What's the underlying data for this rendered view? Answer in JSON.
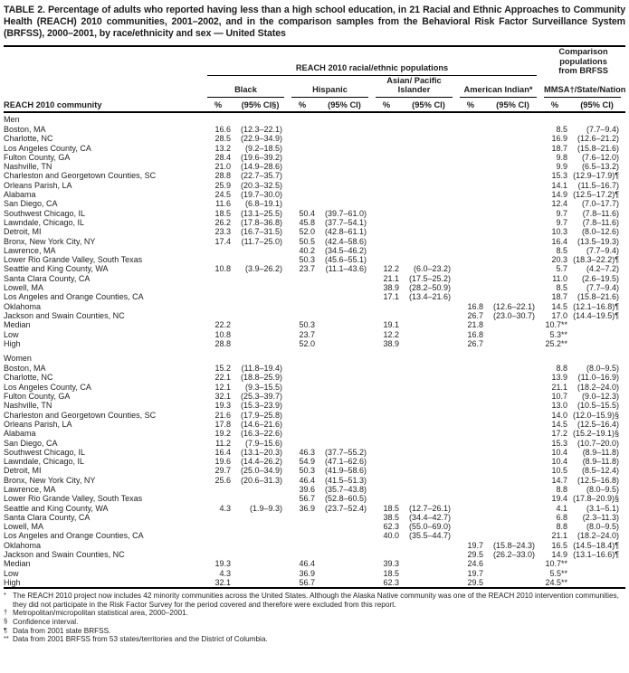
{
  "title": "TABLE 2. Percentage of adults who reported having less than a high school education, in 21 Racial and Ethnic Approaches to Community Health (REACH) 2010 communities, 2001–2002, and in the comparison samples from the Behavioral Risk Factor Surveillance System (BRFSS), 2000–2001, by race/ethnicity and sex — United States",
  "table": {
    "reach_group_label": "REACH 2010 racial/ethnic populations",
    "brfss_group_label": "Comparison populations from BRFSS",
    "community_header": "REACH 2010 community",
    "columns": [
      {
        "name": "Black",
        "pct_label": "%",
        "ci_label": "(95% CI§)"
      },
      {
        "name": "Hispanic",
        "pct_label": "%",
        "ci_label": "(95% CI)"
      },
      {
        "name": "Asian/ Pacific Islander",
        "pct_label": "%",
        "ci_label": "(95% CI)"
      },
      {
        "name": "American Indian*",
        "pct_label": "%",
        "ci_label": "(95% CI)"
      },
      {
        "name": "MMSA†/State/Nation",
        "pct_label": "%",
        "ci_label": "(95% CI)"
      }
    ],
    "sections": [
      {
        "label": "Men",
        "rows": [
          [
            "Boston, MA",
            "16.6",
            "(12.3–22.1)",
            "",
            "",
            "",
            "",
            "",
            "",
            "8.5",
            "(7.7–9.4)"
          ],
          [
            "Charlotte, NC",
            "28.5",
            "(22.9–34.9)",
            "",
            "",
            "",
            "",
            "",
            "",
            "16.9",
            "(12.6–21.2)"
          ],
          [
            "Los Angeles County, CA",
            "13.2",
            "(9.2–18.5)",
            "",
            "",
            "",
            "",
            "",
            "",
            "18.7",
            "(15.8–21.6)"
          ],
          [
            "Fulton County, GA",
            "28.4",
            "(19.6–39.2)",
            "",
            "",
            "",
            "",
            "",
            "",
            "9.8",
            "(7.6–12.0)"
          ],
          [
            "Nashville, TN",
            "21.0",
            "(14.9–28.6)",
            "",
            "",
            "",
            "",
            "",
            "",
            "9.9",
            "(6.5–13.2)"
          ],
          [
            "Charleston and Georgetown Counties, SC",
            "28.8",
            "(22.7–35.7)",
            "",
            "",
            "",
            "",
            "",
            "",
            "15.3",
            "(12.9–17.9)¶"
          ],
          [
            "Orleans Parish, LA",
            "25.9",
            "(20.3–32.5)",
            "",
            "",
            "",
            "",
            "",
            "",
            "14.1",
            "(11.5–16.7)"
          ],
          [
            "Alabama",
            "24.5",
            "(19.7–30.0)",
            "",
            "",
            "",
            "",
            "",
            "",
            "14.9",
            "(12.5–17.2)¶"
          ],
          [
            "San Diego, CA",
            "11.6",
            "(6.8–19.1)",
            "",
            "",
            "",
            "",
            "",
            "",
            "12.4",
            "(7.0–17.7)"
          ],
          [
            "Southwest Chicago, IL",
            "18.5",
            "(13.1–25.5)",
            "50.4",
            "(39.7–61.0)",
            "",
            "",
            "",
            "",
            "9.7",
            "(7.8–11.6)"
          ],
          [
            "Lawndale, Chicago, IL",
            "26.2",
            "(17.8–36.8)",
            "45.8",
            "(37.7–54.1)",
            "",
            "",
            "",
            "",
            "9.7",
            "(7.8–11.6)"
          ],
          [
            "Detroit, MI",
            "23.3",
            "(16.7–31.5)",
            "52.0",
            "(42.8–61.1)",
            "",
            "",
            "",
            "",
            "10.3",
            "(8.0–12.6)"
          ],
          [
            "Bronx, New York City, NY",
            "17.4",
            "(11.7–25.0)",
            "50.5",
            "(42.4–58.6)",
            "",
            "",
            "",
            "",
            "16.4",
            "(13.5–19.3)"
          ],
          [
            "Lawrence, MA",
            "",
            "",
            "40.2",
            "(34.5–46.2)",
            "",
            "",
            "",
            "",
            "8.5",
            "(7.7–9.4)"
          ],
          [
            "Lower Rio Grande Valley, South Texas",
            "",
            "",
            "50.3",
            "(45.6–55.1)",
            "",
            "",
            "",
            "",
            "20.3",
            "(18.3–22.2)¶"
          ],
          [
            "Seattle and King County, WA",
            "10.8",
            "(3.9–26.2)",
            "23.7",
            "(11.1–43.6)",
            "12.2",
            "(6.0–23.2)",
            "",
            "",
            "5.7",
            "(4.2–7.2)"
          ],
          [
            "Santa Clara County, CA",
            "",
            "",
            "",
            "",
            "21.1",
            "(17.5–25.2)",
            "",
            "",
            "11.0",
            "(2.6–19.5)"
          ],
          [
            "Lowell, MA",
            "",
            "",
            "",
            "",
            "38.9",
            "(28.2–50.9)",
            "",
            "",
            "8.5",
            "(7.7–9.4)"
          ],
          [
            "Los Angeles and Orange Counties, CA",
            "",
            "",
            "",
            "",
            "17.1",
            "(13.4–21.6)",
            "",
            "",
            "18.7",
            "(15.8–21.6)"
          ],
          [
            "Oklahoma",
            "",
            "",
            "",
            "",
            "",
            "",
            "16.8",
            "(12.6–22.1)",
            "14.5",
            "(12.1–16.8)¶"
          ],
          [
            "Jackson and Swain Counties, NC",
            "",
            "",
            "",
            "",
            "",
            "",
            "26.7",
            "(23.0–30.7)",
            "17.0",
            "(14.4–19.5)¶"
          ],
          [
            "Median",
            "22.2",
            "",
            "50.3",
            "",
            "19.1",
            "",
            "21.8",
            "",
            "10.7**",
            ""
          ],
          [
            "Low",
            "10.8",
            "",
            "23.7",
            "",
            "12.2",
            "",
            "16.8",
            "",
            "5.3**",
            ""
          ],
          [
            "High",
            "28.8",
            "",
            "52.0",
            "",
            "38.9",
            "",
            "26.7",
            "",
            "25.2**",
            ""
          ]
        ]
      },
      {
        "label": "Women",
        "rows": [
          [
            "Boston, MA",
            "15.2",
            "(11.8–19.4)",
            "",
            "",
            "",
            "",
            "",
            "",
            "8.8",
            "(8.0–9.5)"
          ],
          [
            "Charlotte, NC",
            "22.1",
            "(18.8–25.9)",
            "",
            "",
            "",
            "",
            "",
            "",
            "13.9",
            "(11.0–16.9)"
          ],
          [
            "Los Angeles County, CA",
            "12.1",
            "(9.3–15.5)",
            "",
            "",
            "",
            "",
            "",
            "",
            "21.1",
            "(18.2–24.0)"
          ],
          [
            "Fulton County, GA",
            "32.1",
            "(25.3–39.7)",
            "",
            "",
            "",
            "",
            "",
            "",
            "10.7",
            "(9.0–12.3)"
          ],
          [
            "Nashville, TN",
            "19.3",
            "(15.3–23.9)",
            "",
            "",
            "",
            "",
            "",
            "",
            "13.0",
            "(10.5–15.5)"
          ],
          [
            "Charleston and Georgetown Counties, SC",
            "21.6",
            "(17.9–25.8)",
            "",
            "",
            "",
            "",
            "",
            "",
            "14.0",
            "(12.0–15.9)§"
          ],
          [
            "Orleans Parish, LA",
            "17.8",
            "(14.6–21.6)",
            "",
            "",
            "",
            "",
            "",
            "",
            "14.5",
            "(12.5–16.4)"
          ],
          [
            "Alabama",
            "19.2",
            "(16.3–22.6)",
            "",
            "",
            "",
            "",
            "",
            "",
            "17.2",
            "(15.2–19.1)§"
          ],
          [
            "San Diego, CA",
            "11.2",
            "(7.9–15.6)",
            "",
            "",
            "",
            "",
            "",
            "",
            "15.3",
            "(10.7–20.0)"
          ],
          [
            "Southwest Chicago, IL",
            "16.4",
            "(13.1–20.3)",
            "46.3",
            "(37.7–55.2)",
            "",
            "",
            "",
            "",
            "10.4",
            "(8.9–11.8)"
          ],
          [
            "Lawndale, Chicago, IL",
            "19.6",
            "(14.4–26.2)",
            "54.9",
            "(47.1–62.6)",
            "",
            "",
            "",
            "",
            "10.4",
            "(8.9–11.8)"
          ],
          [
            "Detroit, MI",
            "29.7",
            "(25.0–34.9)",
            "50.3",
            "(41.9–58.6)",
            "",
            "",
            "",
            "",
            "10.5",
            "(8.5–12.4)"
          ],
          [
            "Bronx, New York City, NY",
            "25.6",
            "(20.6–31.3)",
            "46.4",
            "(41.5–51.3)",
            "",
            "",
            "",
            "",
            "14.7",
            "(12.5–16.8)"
          ],
          [
            "Lawrence, MA",
            "",
            "",
            "39.6",
            "(35.7–43.8)",
            "",
            "",
            "",
            "",
            "8.8",
            "(8.0–9.5)"
          ],
          [
            "Lower Rio Grande Valley, South Texas",
            "",
            "",
            "56.7",
            "(52.8–60.5)",
            "",
            "",
            "",
            "",
            "19.4",
            "(17.8–20.9)§"
          ],
          [
            "Seattle and King County, WA",
            "4.3",
            "(1.9–9.3)",
            "36.9",
            "(23.7–52.4)",
            "18.5",
            "(12.7–26.1)",
            "",
            "",
            "4.1",
            "(3.1–5.1)"
          ],
          [
            "Santa Clara County, CA",
            "",
            "",
            "",
            "",
            "38.5",
            "(34.4–42.7)",
            "",
            "",
            "6.8",
            "(2.3–11.3)"
          ],
          [
            "Lowell, MA",
            "",
            "",
            "",
            "",
            "62.3",
            "(55.0–69.0)",
            "",
            "",
            "8.8",
            "(8.0–9.5)"
          ],
          [
            "Los Angeles and Orange Counties, CA",
            "",
            "",
            "",
            "",
            "40.0",
            "(35.5–44.7)",
            "",
            "",
            "21.1",
            "(18.2–24.0)"
          ],
          [
            "Oklahoma",
            "",
            "",
            "",
            "",
            "",
            "",
            "19.7",
            "(15.8–24.3)",
            "16.5",
            "(14.5–18.4)¶"
          ],
          [
            "Jackson and Swain Counties, NC",
            "",
            "",
            "",
            "",
            "",
            "",
            "29.5",
            "(26.2–33.0)",
            "14.9",
            "(13.1–16.6)¶"
          ],
          [
            "Median",
            "19.3",
            "",
            "46.4",
            "",
            "39.3",
            "",
            "24.6",
            "",
            "10.7**",
            ""
          ],
          [
            "Low",
            "4.3",
            "",
            "36.9",
            "",
            "18.5",
            "",
            "19.7",
            "",
            "5.5**",
            ""
          ],
          [
            "High",
            "32.1",
            "",
            "56.7",
            "",
            "62.3",
            "",
            "29.5",
            "",
            "24.5**",
            ""
          ]
        ]
      }
    ]
  },
  "footnotes": [
    {
      "symbol": "*",
      "text": "The REACH 2010 project now includes 42 minority communities across the United States. Although the Alaska Native community was one of the REACH 2010 intervention communities, they did not participate in the Risk Factor Survey for the period covered and therefore were excluded from this report."
    },
    {
      "symbol": "†",
      "text": "Metropolitan/micropolitan statistical area, 2000–2001."
    },
    {
      "symbol": "§",
      "text": "Confidence interval."
    },
    {
      "symbol": "¶",
      "text": "Data from 2001 state BRFSS."
    },
    {
      "symbol": "**",
      "text": "Data from 2001 BRFSS from 53 states/territories and the District of Columbia."
    }
  ]
}
